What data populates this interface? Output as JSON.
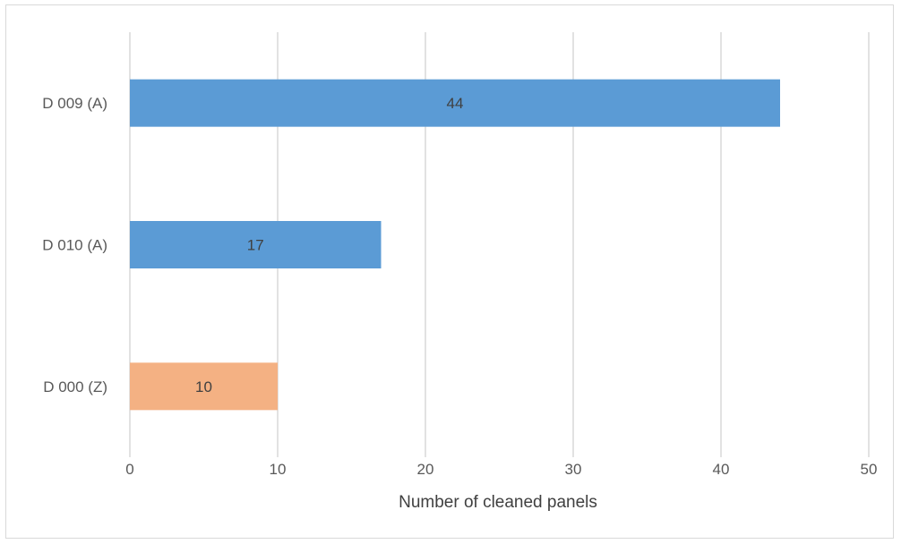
{
  "chart_data": {
    "type": "bar",
    "orientation": "horizontal",
    "categories": [
      "D 009 (A)",
      "D 010 (A)",
      "D 000 (Z)"
    ],
    "values": [
      44,
      17,
      10
    ],
    "colors": [
      "#5b9bd5",
      "#5b9bd5",
      "#f4b183"
    ],
    "data_labels": [
      "44",
      "17",
      "10"
    ],
    "xlabel": "Number of cleaned panels",
    "ylabel": "",
    "xlim": [
      0,
      50
    ],
    "xticks": [
      0,
      10,
      20,
      30,
      40,
      50
    ],
    "grid": true,
    "gridline_color": "#d9d9d9",
    "legend": "none"
  }
}
